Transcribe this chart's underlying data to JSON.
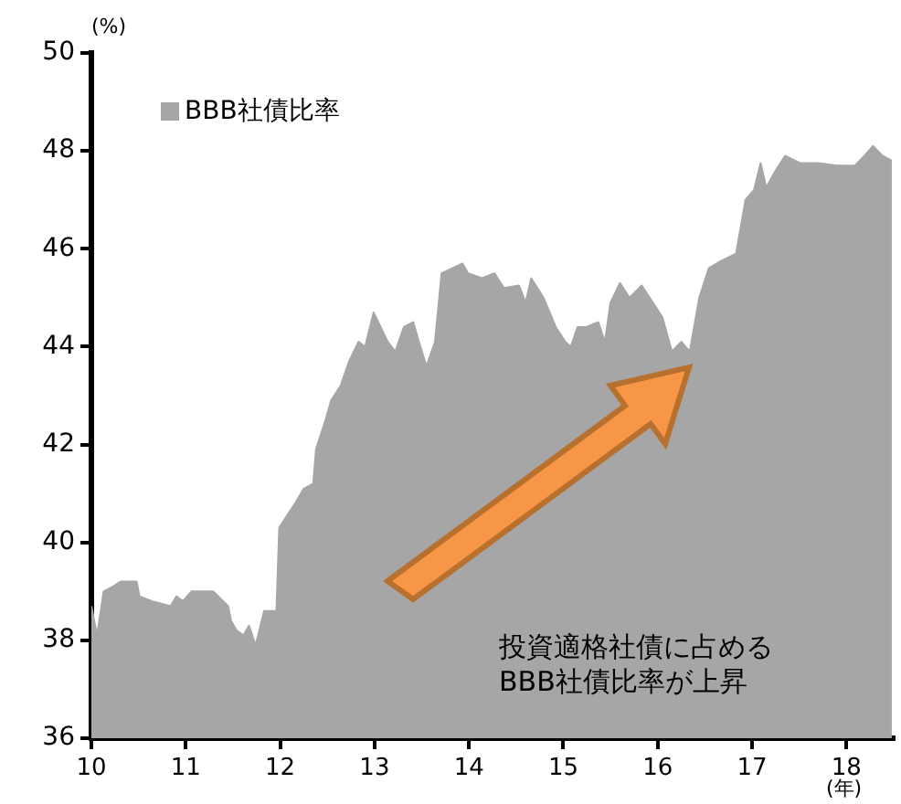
{
  "chart_data": {
    "type": "area",
    "ylabel": "(%)",
    "xlabel": "(年)",
    "legend": "top left",
    "grid": false,
    "xlim": [
      10,
      18.5
    ],
    "xticks": [
      10,
      11,
      12,
      13,
      14,
      15,
      16,
      17,
      18
    ],
    "ylim": [
      36,
      50
    ],
    "yticks": [
      36,
      38,
      40,
      42,
      44,
      46,
      48,
      50
    ],
    "annotations": [
      "投資適格社債に占める\nBBB社債比率が上昇"
    ],
    "series": [
      {
        "name": "BBB社債比率",
        "color": "#a6a6a6",
        "x": [
          10.0,
          10.06,
          10.13,
          10.23,
          10.31,
          10.39,
          10.48,
          10.51,
          10.64,
          10.84,
          10.9,
          10.97,
          11.06,
          11.29,
          11.45,
          11.48,
          11.54,
          11.61,
          11.67,
          11.74,
          11.83,
          11.96,
          11.99,
          12.09,
          12.16,
          12.25,
          12.35,
          12.38,
          12.48,
          12.54,
          12.64,
          12.73,
          12.83,
          12.9,
          12.99,
          13.14,
          13.22,
          13.31,
          13.41,
          13.47,
          13.55,
          13.64,
          13.71,
          13.93,
          13.99,
          14.14,
          14.27,
          14.37,
          14.53,
          14.6,
          14.66,
          14.79,
          14.92,
          15.02,
          15.08,
          15.15,
          15.24,
          15.37,
          15.44,
          15.5,
          15.6,
          15.7,
          15.83,
          15.95,
          16.05,
          16.15,
          16.25,
          16.34,
          16.44,
          16.54,
          16.67,
          16.83,
          16.93,
          17.02,
          17.09,
          17.15,
          17.25,
          17.35,
          17.51,
          17.7,
          17.9,
          18.09,
          18.19,
          18.28,
          18.38,
          18.48
        ],
        "values": [
          38.7,
          38.1,
          39.0,
          39.1,
          39.2,
          39.2,
          39.2,
          38.9,
          38.8,
          38.7,
          38.9,
          38.8,
          39.0,
          39.0,
          38.7,
          38.4,
          38.2,
          38.1,
          38.3,
          37.9,
          38.6,
          38.6,
          40.3,
          40.6,
          40.8,
          41.1,
          41.2,
          41.9,
          42.5,
          42.9,
          43.2,
          43.7,
          44.1,
          44.0,
          44.7,
          44.1,
          43.9,
          44.4,
          44.5,
          44.1,
          43.6,
          44.1,
          45.5,
          45.7,
          45.5,
          45.4,
          45.5,
          45.2,
          45.25,
          44.9,
          45.4,
          45.0,
          44.4,
          44.1,
          44.0,
          44.4,
          44.4,
          44.5,
          44.1,
          44.9,
          45.3,
          45.0,
          45.25,
          44.9,
          44.6,
          43.9,
          44.1,
          43.9,
          45.0,
          45.6,
          45.75,
          45.9,
          47.0,
          47.2,
          47.75,
          47.25,
          47.6,
          47.9,
          47.75,
          47.75,
          47.7,
          47.7,
          47.9,
          48.1,
          47.9,
          47.8
        ]
      }
    ]
  }
}
